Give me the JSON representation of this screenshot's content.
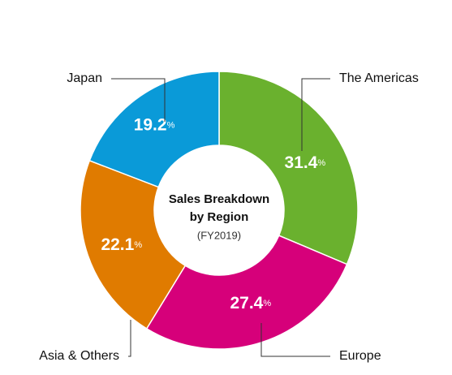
{
  "chart_data": {
    "type": "donut",
    "title": [
      "Sales Breakdown",
      "by Region"
    ],
    "subtitle": "(FY2019)",
    "categories": [
      "The Americas",
      "Europe",
      "Asia & Others",
      "Japan"
    ],
    "values": [
      31.4,
      27.4,
      22.1,
      19.2
    ],
    "value_labels": [
      "31.4%",
      "27.4%",
      "22.1%",
      "19.2%"
    ],
    "colors": [
      "#6ab12e",
      "#d6007a",
      "#e07b00",
      "#0a9ad8"
    ]
  }
}
